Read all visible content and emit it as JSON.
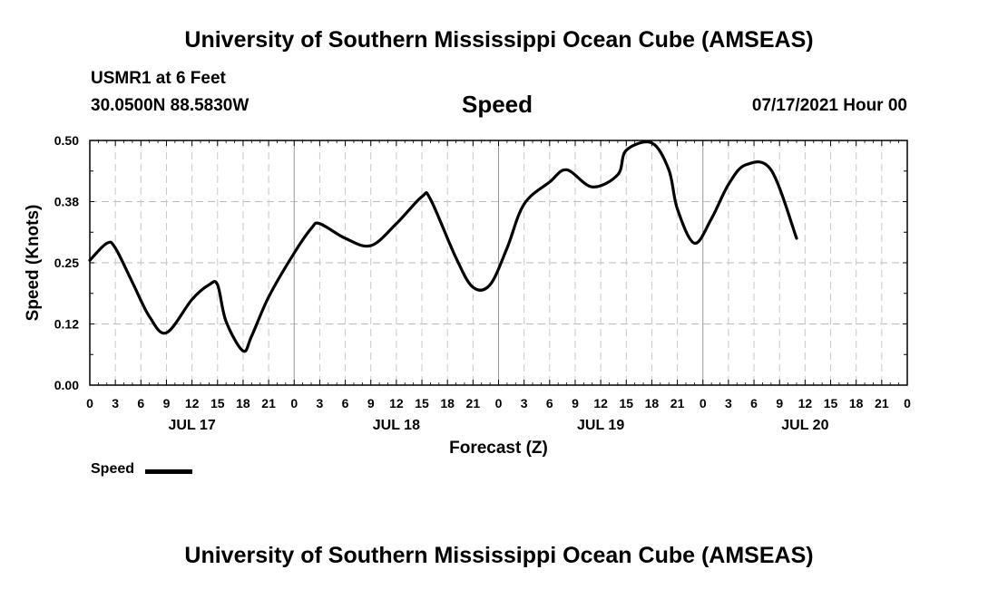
{
  "header": {
    "title": "University of Southern Mississippi Ocean Cube (AMSEAS)",
    "station": "USMR1 at 6 Feet",
    "coords": "30.0500N  88.5830W",
    "parameter": "Speed",
    "datetime": "07/17/2021 Hour 00"
  },
  "footer": {
    "title": "University of Southern Mississippi Ocean Cube (AMSEAS)"
  },
  "legend": {
    "label": "Speed"
  },
  "chart_data": {
    "type": "line",
    "title": "Speed",
    "xlabel": "Forecast (Z)",
    "ylabel": "Speed (Knots)",
    "ylim": [
      0,
      0.5
    ],
    "xlim": [
      0,
      96
    ],
    "grid": true,
    "yticks": [
      "0.00",
      "0.12",
      "0.25",
      "0.38",
      "0.50"
    ],
    "xticks": [
      "0",
      "3",
      "6",
      "9",
      "12",
      "15",
      "18",
      "21",
      "0",
      "3",
      "6",
      "9",
      "12",
      "15",
      "18",
      "21",
      "0",
      "3",
      "6",
      "9",
      "12",
      "15",
      "18",
      "21",
      "0",
      "3",
      "6",
      "9",
      "12",
      "15",
      "18",
      "21",
      "0"
    ],
    "day_labels": [
      "JUL 17",
      "JUL 18",
      "JUL 19",
      "JUL 20"
    ],
    "series": [
      {
        "name": "Speed",
        "color": "#000000",
        "x": [
          0,
          2,
          3,
          5,
          7,
          9,
          12,
          14,
          15,
          16,
          18,
          19,
          21,
          24,
          26,
          27,
          30,
          33,
          36,
          39,
          40,
          43,
          45,
          47,
          49,
          51,
          54,
          56,
          59,
          62,
          63,
          66,
          68,
          69,
          71,
          73,
          75,
          77,
          80,
          83
        ],
        "y": [
          0.255,
          0.29,
          0.28,
          0.21,
          0.14,
          0.107,
          0.175,
          0.205,
          0.205,
          0.13,
          0.07,
          0.1,
          0.18,
          0.27,
          0.32,
          0.33,
          0.3,
          0.285,
          0.33,
          0.385,
          0.38,
          0.26,
          0.2,
          0.205,
          0.28,
          0.37,
          0.415,
          0.44,
          0.405,
          0.43,
          0.48,
          0.495,
          0.44,
          0.36,
          0.29,
          0.34,
          0.41,
          0.45,
          0.44,
          0.3
        ]
      }
    ]
  }
}
